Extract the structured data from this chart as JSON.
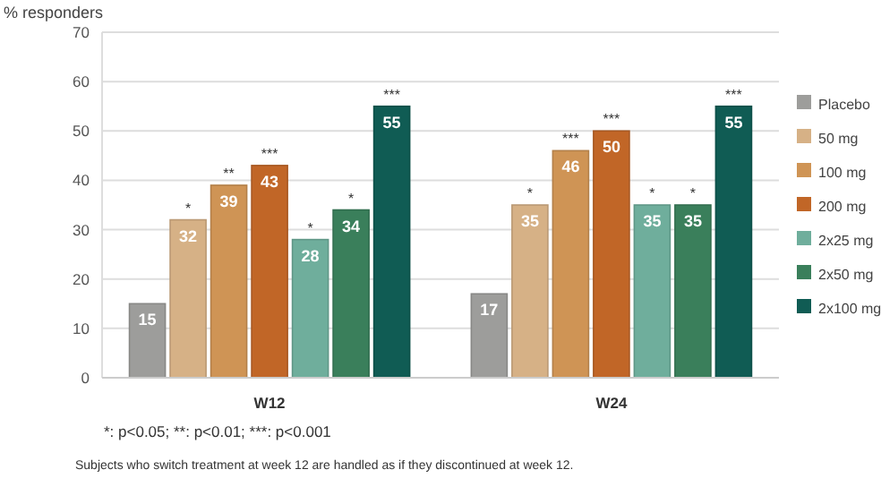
{
  "chart_data": {
    "type": "bar",
    "ylabel": "% responders",
    "categories": [
      "W12",
      "W24"
    ],
    "series": [
      {
        "name": "Placebo",
        "color": "#9d9d9b",
        "values": [
          15,
          17
        ]
      },
      {
        "name": "50 mg",
        "color": "#d6b186",
        "values": [
          32,
          35
        ]
      },
      {
        "name": "100 mg",
        "color": "#cf9455",
        "values": [
          39,
          46
        ]
      },
      {
        "name": "200 mg",
        "color": "#c16627",
        "values": [
          43,
          50
        ]
      },
      {
        "name": "2x25 mg",
        "color": "#6fae9c",
        "values": [
          28,
          35
        ]
      },
      {
        "name": "2x50 mg",
        "color": "#3a7f5b",
        "values": [
          34,
          35
        ]
      },
      {
        "name": "2x100 mg",
        "color": "#105c54",
        "values": [
          55,
          55
        ]
      }
    ],
    "ylim": [
      0,
      70
    ],
    "yticks": [
      0,
      10,
      20,
      30,
      40,
      50,
      60,
      70
    ],
    "grid": "y",
    "legend": "right",
    "data_labels": true,
    "annotations": [
      "*",
      "**",
      "***",
      "*",
      "*",
      "***",
      "*",
      "***",
      "***",
      "*",
      "*",
      "***",
      "*: p<0.05; **: p<0.01; ***: p<0.001",
      "Subjects who switch treatment at week 12 are handled as if they discontinued at week 12."
    ]
  }
}
